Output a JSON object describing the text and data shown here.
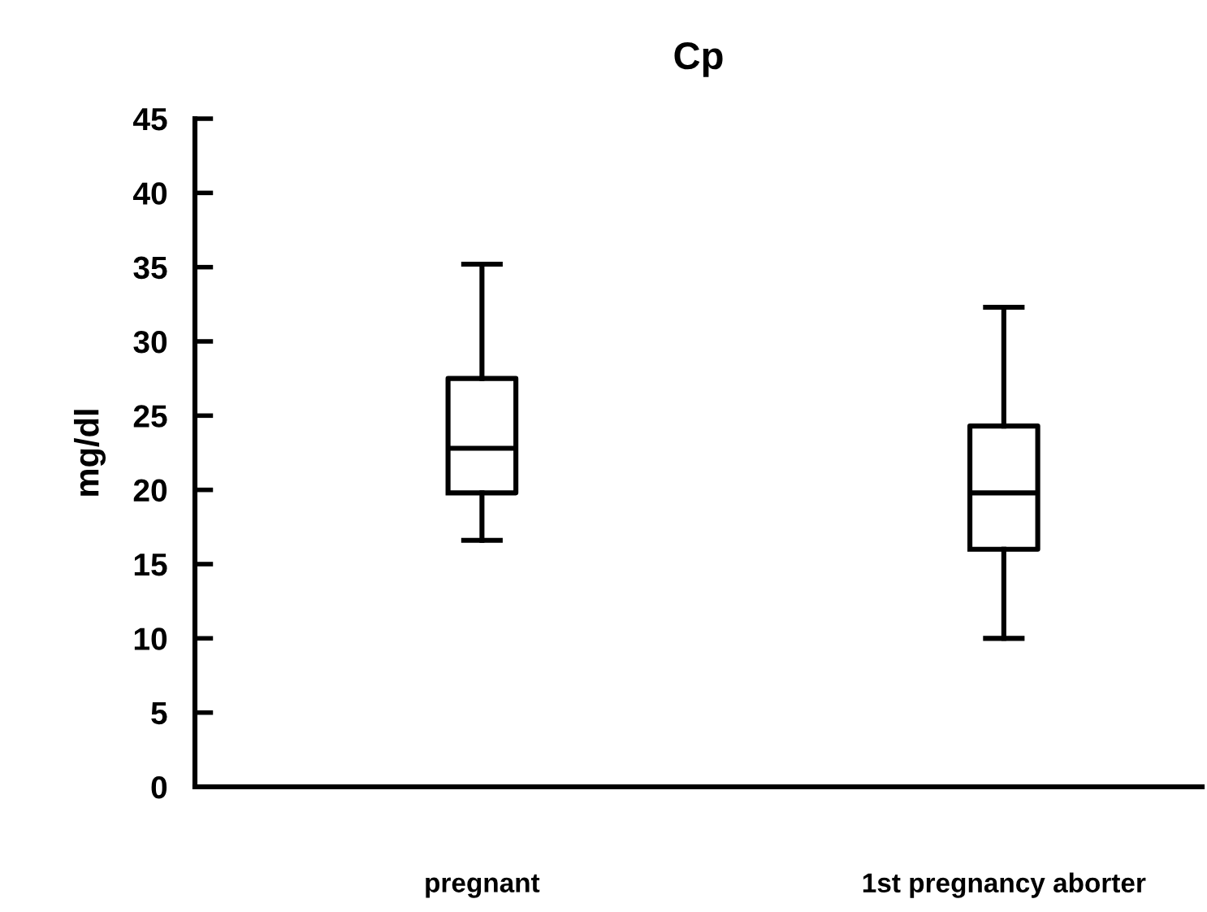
{
  "chart_data": {
    "type": "box",
    "title": "Cp",
    "ylabel": "mg/dl",
    "categories": [
      "pregnant",
      "1st pregnancy aborter"
    ],
    "boxes": [
      {
        "low": 16.6,
        "q1": 19.8,
        "median": 22.8,
        "q3": 27.5,
        "high": 35.2
      },
      {
        "low": 10.0,
        "q1": 16.0,
        "median": 19.8,
        "q3": 24.3,
        "high": 32.3
      }
    ],
    "color": "#000000",
    "ylim": [
      0,
      45
    ],
    "yticks": [
      0,
      5,
      10,
      15,
      20,
      25,
      30,
      35,
      40,
      45
    ],
    "grid": false
  }
}
